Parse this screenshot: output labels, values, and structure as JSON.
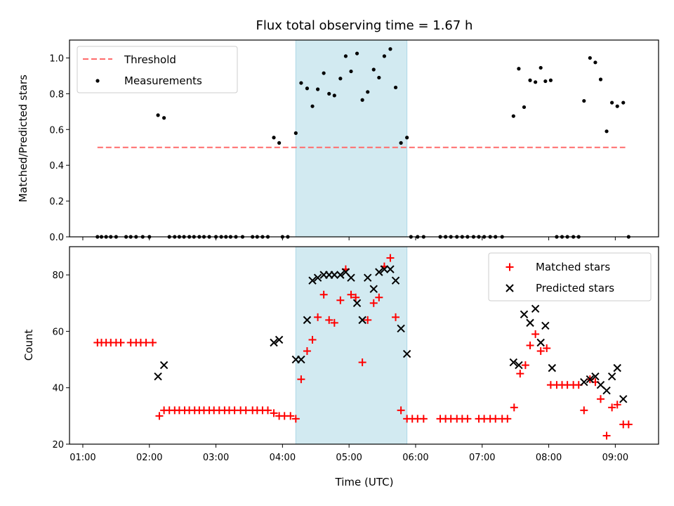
{
  "figure": {
    "title": "Flux total observing time = 1.67 h",
    "xlabel": "Time (UTC)",
    "xtick_labels": [
      "01:00",
      "02:00",
      "03:00",
      "04:00",
      "05:00",
      "06:00",
      "07:00",
      "08:00",
      "09:00"
    ],
    "colors": {
      "shade": "#add8e6",
      "threshold": "#ff6b6b",
      "measurements": "#000000",
      "matched": "#ff0000",
      "predicted": "#000000"
    }
  },
  "chart_data": [
    {
      "type": "scatter",
      "ylabel": "Matched/Predicted stars",
      "xlim": [
        0.8,
        9.65
      ],
      "ylim": [
        0,
        1.1
      ],
      "yticks": [
        0.0,
        0.2,
        0.4,
        0.6,
        0.8,
        1.0
      ],
      "ytick_labels": [
        "0.0",
        "0.2",
        "0.4",
        "0.6",
        "0.8",
        "1.0"
      ],
      "shaded_span": [
        4.2,
        5.87
      ],
      "legend_position": "upper left",
      "threshold": {
        "name": "Threshold",
        "y": 0.5,
        "x": [
          1.22,
          9.15
        ],
        "style": "dashed"
      },
      "series": [
        {
          "name": "Measurements",
          "marker": "dot",
          "x": [
            1.22,
            1.28,
            1.35,
            1.42,
            1.5,
            1.65,
            1.72,
            1.8,
            1.9,
            2.0,
            2.13,
            2.22,
            2.3,
            2.38,
            2.45,
            2.52,
            2.6,
            2.67,
            2.75,
            2.82,
            2.9,
            3.0,
            3.08,
            3.15,
            3.22,
            3.3,
            3.4,
            3.55,
            3.62,
            3.7,
            3.78,
            3.87,
            3.95,
            4.0,
            4.08,
            4.2,
            4.28,
            4.37,
            4.45,
            4.53,
            4.62,
            4.7,
            4.78,
            4.87,
            4.95,
            5.03,
            5.12,
            5.2,
            5.28,
            5.37,
            5.45,
            5.53,
            5.62,
            5.7,
            5.78,
            5.87,
            5.93,
            6.03,
            6.12,
            6.37,
            6.45,
            6.53,
            6.62,
            6.7,
            6.78,
            6.87,
            6.95,
            7.03,
            7.12,
            7.2,
            7.3,
            7.47,
            7.55,
            7.63,
            7.72,
            7.8,
            7.88,
            7.95,
            8.03,
            8.12,
            8.2,
            8.28,
            8.37,
            8.45,
            8.53,
            8.62,
            8.7,
            8.78,
            8.87,
            8.95,
            9.03,
            9.12,
            9.2
          ],
          "y": [
            0,
            0,
            0,
            0,
            0,
            0,
            0,
            0,
            0,
            0,
            0.68,
            0.665,
            0,
            0,
            0,
            0,
            0,
            0,
            0,
            0,
            0,
            0,
            0,
            0,
            0,
            0,
            0,
            0,
            0,
            0,
            0,
            0.555,
            0.525,
            0,
            0,
            0.58,
            0.86,
            0.83,
            0.73,
            0.825,
            0.915,
            0.8,
            0.79,
            0.885,
            1.01,
            0.925,
            1.025,
            0.765,
            0.81,
            0.935,
            0.89,
            1.01,
            1.05,
            0.835,
            0.525,
            0.555,
            0,
            0,
            0,
            0,
            0,
            0,
            0,
            0,
            0,
            0,
            0,
            0,
            0,
            0,
            0,
            0.675,
            0.94,
            0.725,
            0.875,
            0.865,
            0.945,
            0.87,
            0.875,
            0,
            0,
            0,
            0,
            0,
            0.76,
            1.0,
            0.975,
            0.88,
            0.59,
            0.75,
            0.73,
            0.75,
            0
          ]
        }
      ]
    },
    {
      "type": "scatter",
      "ylabel": "Count",
      "xlim": [
        0.8,
        9.65
      ],
      "ylim": [
        20,
        90
      ],
      "yticks": [
        20,
        40,
        60,
        80
      ],
      "ytick_labels": [
        "20",
        "40",
        "60",
        "80"
      ],
      "shaded_span": [
        4.2,
        5.87
      ],
      "legend_position": "upper right",
      "series": [
        {
          "name": "Matched stars",
          "marker": "plus",
          "x": [
            1.22,
            1.28,
            1.35,
            1.42,
            1.5,
            1.57,
            1.72,
            1.8,
            1.87,
            1.95,
            2.05,
            2.15,
            2.22,
            2.3,
            2.38,
            2.45,
            2.53,
            2.6,
            2.68,
            2.75,
            2.82,
            2.9,
            2.97,
            3.05,
            3.13,
            3.2,
            3.28,
            3.37,
            3.45,
            3.55,
            3.62,
            3.7,
            3.78,
            3.87,
            3.95,
            4.03,
            4.12,
            4.2,
            4.28,
            4.37,
            4.45,
            4.53,
            4.62,
            4.7,
            4.78,
            4.87,
            4.95,
            5.03,
            5.1,
            5.2,
            5.28,
            5.37,
            5.45,
            5.53,
            5.62,
            5.7,
            5.78,
            5.87,
            5.95,
            6.03,
            6.12,
            6.37,
            6.45,
            6.53,
            6.62,
            6.7,
            6.78,
            6.95,
            7.03,
            7.12,
            7.2,
            7.3,
            7.38,
            7.48,
            7.57,
            7.65,
            7.72,
            7.8,
            7.88,
            7.97,
            8.03,
            8.12,
            8.2,
            8.28,
            8.37,
            8.45,
            8.53,
            8.62,
            8.7,
            8.78,
            8.87,
            8.95,
            9.03,
            9.12,
            9.2
          ],
          "y": [
            56,
            56,
            56,
            56,
            56,
            56,
            56,
            56,
            56,
            56,
            56,
            30,
            32,
            32,
            32,
            32,
            32,
            32,
            32,
            32,
            32,
            32,
            32,
            32,
            32,
            32,
            32,
            32,
            32,
            32,
            32,
            32,
            32,
            31,
            30,
            30,
            30,
            29,
            43,
            53,
            57,
            65,
            73,
            64,
            63,
            71,
            82,
            73,
            72,
            49,
            64,
            70,
            72,
            83,
            86,
            65,
            32,
            29,
            29,
            29,
            29,
            29,
            29,
            29,
            29,
            29,
            29,
            29,
            29,
            29,
            29,
            29,
            29,
            33,
            45,
            48,
            55,
            59,
            53,
            54,
            41,
            41,
            41,
            41,
            41,
            41,
            32,
            43,
            42,
            36,
            23,
            33,
            34,
            27,
            27
          ]
        },
        {
          "name": "Predicted stars",
          "marker": "x",
          "x": [
            2.13,
            2.22,
            3.87,
            3.95,
            4.2,
            4.28,
            4.37,
            4.45,
            4.53,
            4.62,
            4.7,
            4.78,
            4.87,
            4.95,
            5.03,
            5.12,
            5.2,
            5.28,
            5.37,
            5.45,
            5.53,
            5.62,
            5.7,
            5.78,
            5.87,
            7.47,
            7.55,
            7.63,
            7.72,
            7.8,
            7.88,
            7.95,
            8.05,
            8.53,
            8.62,
            8.7,
            8.78,
            8.87,
            8.95,
            9.03,
            9.12
          ],
          "y": [
            44,
            48,
            56,
            57,
            50,
            50,
            64,
            78,
            79,
            80,
            80,
            80,
            80,
            81,
            79,
            70,
            64,
            79,
            75,
            81,
            82,
            82,
            78,
            61,
            52,
            49,
            48,
            66,
            63,
            68,
            56,
            62,
            47,
            42,
            43,
            44,
            41,
            39,
            44,
            47,
            36
          ]
        }
      ]
    }
  ]
}
